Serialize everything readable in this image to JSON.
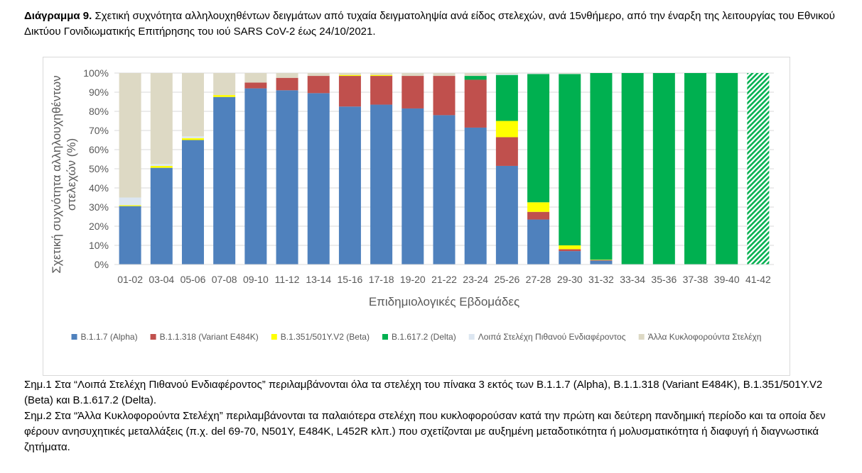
{
  "caption": {
    "label": "Διάγραμμα 9.",
    "text": "Σχετική συχνότητα αλληλουχηθέντων δειγμάτων από τυχαία δειγματοληψία ανά είδος στελεχών, ανά 15νθήμερο, από την έναρξη της λειτουργίας του Εθνικού Δικτύου Γονιδιωματικής Επιτήρησης του ιού SARS CoV-2 έως 24/10/2021."
  },
  "notes": [
    "Σημ.1 Στα “Λοιπά Στελέχη Πιθανού Ενδιαφέροντος” περιλαμβάνονται όλα τα στελέχη του πίνακα 3 εκτός των B.1.1.7 (Alpha), B.1.1.318 (Variant E484K), B.1.351/501Y.V2 (Beta) και B.1.617.2 (Delta).",
    "Σημ.2 Στα “Άλλα Κυκλοφορούντα Στελέχη” περιλαμβάνονται τα παλαιότερα στελέχη που κυκλοφορούσαν κατά την πρώτη και δεύτερη πανδημική περίοδο και τα οποία δεν φέρουν ανησυχητικές μεταλλάξεις (π.χ. del 69-70, N501Y, E484K, L452R κλπ.) που σχετίζονται με αυξημένη μεταδοτικότητα ή μολυσματικότητα ή διαφυγή ή διαγνωστικά ζητήματα."
  ],
  "chart_data": {
    "type": "bar",
    "stacked": true,
    "percent": true,
    "xlabel": "Επιδημιολογικές Εβδομάδες",
    "ylabel": "Σχετική συχνότητα αλληλουχηθέντων στελεχών (%)",
    "ylim": [
      0,
      100
    ],
    "yticks": [
      "0%",
      "10%",
      "20%",
      "30%",
      "40%",
      "50%",
      "60%",
      "70%",
      "80%",
      "90%",
      "100%"
    ],
    "legend_position": "bottom",
    "categories": [
      "01-02",
      "03-04",
      "05-06",
      "07-08",
      "09-10",
      "11-12",
      "13-14",
      "15-16",
      "17-18",
      "19-20",
      "21-22",
      "23-24",
      "25-26",
      "27-28",
      "29-30",
      "31-32",
      "33-34",
      "35-36",
      "37-38",
      "39-40",
      "41-42"
    ],
    "hatched_category": "41-42",
    "series": [
      {
        "name": "B.1.1.7 (Alpha)",
        "color": "#4f81bd",
        "values": [
          30.5,
          50.5,
          65,
          87.5,
          92,
          91,
          89.5,
          82.5,
          83.5,
          81.5,
          78,
          71.5,
          51.5,
          23.5,
          7,
          2,
          0,
          0,
          0,
          0,
          0
        ]
      },
      {
        "name": "B.1.1.318 (Variant E484K)",
        "color": "#c0504d",
        "values": [
          0,
          0,
          0,
          0,
          3,
          6.5,
          9,
          16,
          15,
          17,
          20.5,
          25,
          15,
          4,
          1,
          0.3,
          0,
          0,
          0,
          0,
          0
        ]
      },
      {
        "name": "B.1.351/501Y.V2 (Beta)",
        "color": "#ffff00",
        "values": [
          0.5,
          1,
          1,
          1,
          0,
          0,
          0,
          0.5,
          0.5,
          0,
          0,
          0,
          8.5,
          5,
          2,
          0.2,
          0,
          0,
          0,
          0,
          0
        ]
      },
      {
        "name": "B.1.617.2 (Delta)",
        "color": "#00b050",
        "values": [
          0,
          0,
          0,
          0,
          0,
          0,
          0,
          0,
          0,
          0,
          0,
          2,
          24,
          67,
          89.5,
          97.5,
          100,
          100,
          100,
          100,
          100
        ]
      },
      {
        "name": "Λοιπά Στελέχη Πιθανού Ενδιαφέροντος",
        "color": "#dce6f1",
        "values": [
          4,
          1,
          1,
          0,
          0,
          0,
          0,
          0,
          0,
          0,
          0,
          0,
          0.5,
          0.3,
          0.2,
          0,
          0,
          0,
          0,
          0,
          0
        ]
      },
      {
        "name": "Άλλα Κυκλοφορούντα Στελέχη",
        "color": "#ddd9c4",
        "values": [
          65,
          47.5,
          33,
          11.5,
          5,
          2.5,
          1.5,
          1,
          1,
          1.5,
          1.5,
          1.5,
          0.5,
          0.2,
          0.3,
          0,
          0,
          0,
          0,
          0,
          0
        ]
      }
    ]
  }
}
